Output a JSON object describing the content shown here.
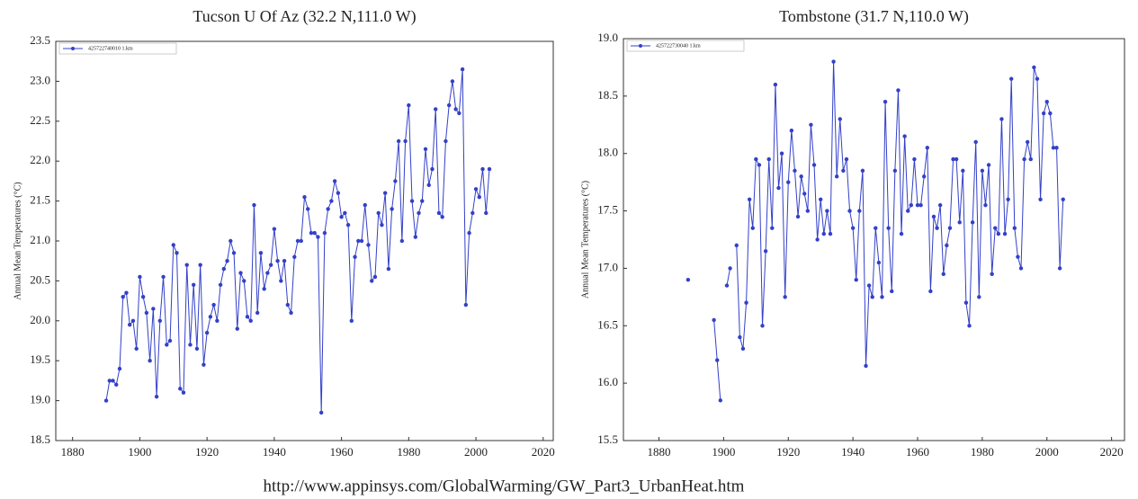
{
  "chart_data": [
    {
      "type": "line",
      "title": "Tucson U Of Az (32.2 N,111.0 W)",
      "y_label": "Annual Mean Temperatures (°C)",
      "x": [
        1890,
        1891,
        1892,
        1893,
        1894,
        1895,
        1896,
        1897,
        1898,
        1899,
        1900,
        1901,
        1902,
        1903,
        1904,
        1905,
        1906,
        1907,
        1908,
        1909,
        1910,
        1911,
        1912,
        1913,
        1914,
        1915,
        1916,
        1917,
        1918,
        1919,
        1920,
        1921,
        1922,
        1923,
        1924,
        1925,
        1926,
        1927,
        1928,
        1929,
        1930,
        1931,
        1932,
        1933,
        1934,
        1935,
        1936,
        1937,
        1938,
        1939,
        1940,
        1941,
        1942,
        1943,
        1944,
        1945,
        1946,
        1947,
        1948,
        1949,
        1950,
        1951,
        1952,
        1953,
        1954,
        1955,
        1956,
        1957,
        1958,
        1959,
        1960,
        1961,
        1962,
        1963,
        1964,
        1965,
        1966,
        1967,
        1968,
        1969,
        1970,
        1971,
        1972,
        1973,
        1974,
        1975,
        1976,
        1977,
        1978,
        1979,
        1980,
        1981,
        1982,
        1983,
        1984,
        1985,
        1986,
        1987,
        1988,
        1989,
        1990,
        1991,
        1992,
        1993,
        1994,
        1995,
        1996,
        1997,
        1998,
        1999,
        2000,
        2001,
        2002,
        2003,
        2004
      ],
      "series": [
        {
          "name": "425722740010 1.km",
          "color": "#3340c8",
          "values": [
            19.0,
            19.25,
            19.25,
            19.2,
            19.4,
            20.3,
            20.35,
            19.95,
            20.0,
            19.65,
            20.55,
            20.3,
            20.1,
            19.5,
            20.15,
            19.05,
            20.0,
            20.55,
            19.7,
            19.75,
            20.95,
            20.85,
            19.15,
            19.1,
            20.7,
            19.7,
            20.45,
            19.65,
            20.7,
            19.45,
            19.85,
            20.05,
            20.2,
            20.0,
            20.45,
            20.65,
            20.75,
            21.0,
            20.85,
            19.9,
            20.6,
            20.5,
            20.05,
            20.0,
            21.45,
            20.1,
            20.85,
            20.4,
            20.6,
            20.7,
            21.15,
            20.75,
            20.5,
            20.75,
            20.2,
            20.1,
            20.8,
            21.0,
            21.0,
            21.55,
            21.4,
            21.1,
            21.1,
            21.05,
            18.85,
            21.1,
            21.4,
            21.5,
            21.75,
            21.6,
            21.3,
            21.35,
            21.2,
            20.0,
            20.8,
            21.0,
            21.0,
            21.45,
            20.95,
            20.5,
            20.55,
            21.35,
            21.2,
            21.6,
            20.65,
            21.4,
            21.75,
            22.25,
            21.0,
            22.25,
            22.7,
            21.5,
            21.05,
            21.35,
            21.5,
            22.15,
            21.7,
            21.9,
            22.65,
            21.35,
            21.3,
            22.25,
            22.7,
            23.0,
            22.65,
            22.6,
            23.15,
            20.2,
            21.1,
            21.35,
            21.65,
            21.55,
            21.9,
            21.35,
            21.9
          ]
        }
      ],
      "xlim": [
        1875,
        2023
      ],
      "xticks": [
        1880,
        1900,
        1920,
        1940,
        1960,
        1980,
        2000,
        2020
      ],
      "ylim": [
        18.5,
        23.5
      ],
      "yticks": [
        18.5,
        {
          "value": 19,
          "label": "19.0"
        },
        19.5,
        {
          "value": 20,
          "label": "20.0"
        },
        20.5,
        {
          "value": 21,
          "label": "21.0"
        },
        21.5,
        {
          "value": 22,
          "label": "22.0"
        },
        22.5,
        {
          "value": 23,
          "label": "23.0"
        },
        23.5
      ],
      "legend": "upper left"
    },
    {
      "type": "line",
      "title": "Tombstone (31.7 N,110.0 W)",
      "y_label": "Annual Mean Temperatures (°C)",
      "x": [
        1889,
        1890,
        1891,
        1892,
        1893,
        1894,
        1895,
        1896,
        1897,
        1898,
        1899,
        1900,
        1901,
        1902,
        1903,
        1904,
        1905,
        1906,
        1907,
        1908,
        1909,
        1910,
        1911,
        1912,
        1913,
        1914,
        1915,
        1916,
        1917,
        1918,
        1919,
        1920,
        1921,
        1922,
        1923,
        1924,
        1925,
        1926,
        1927,
        1928,
        1929,
        1930,
        1931,
        1932,
        1933,
        1934,
        1935,
        1936,
        1937,
        1938,
        1939,
        1940,
        1941,
        1942,
        1943,
        1944,
        1945,
        1946,
        1947,
        1948,
        1949,
        1950,
        1951,
        1952,
        1953,
        1954,
        1955,
        1956,
        1957,
        1958,
        1959,
        1960,
        1961,
        1962,
        1963,
        1964,
        1965,
        1966,
        1967,
        1968,
        1969,
        1970,
        1971,
        1972,
        1973,
        1974,
        1975,
        1976,
        1977,
        1978,
        1979,
        1980,
        1981,
        1982,
        1983,
        1984,
        1985,
        1986,
        1987,
        1988,
        1989,
        1990,
        1991,
        1992,
        1993,
        1994,
        1995,
        1996,
        1997,
        1998,
        1999,
        2000,
        2001,
        2002,
        2003,
        2004,
        2005
      ],
      "series": [
        {
          "name": "425722730040 1.km",
          "color": "#3340c8",
          "values": [
            16.9,
            null,
            null,
            null,
            null,
            null,
            null,
            null,
            16.55,
            16.2,
            15.85,
            null,
            16.85,
            17.0,
            null,
            17.2,
            16.4,
            16.3,
            16.7,
            17.6,
            17.35,
            17.95,
            17.9,
            16.5,
            17.15,
            17.95,
            17.35,
            18.6,
            17.7,
            18.0,
            16.75,
            17.75,
            18.2,
            17.85,
            17.45,
            17.8,
            17.65,
            17.5,
            18.25,
            17.9,
            17.25,
            17.6,
            17.3,
            17.5,
            17.3,
            18.8,
            17.8,
            18.3,
            17.85,
            17.95,
            17.5,
            17.35,
            16.9,
            17.5,
            17.85,
            16.15,
            16.85,
            16.75,
            17.35,
            17.05,
            16.75,
            18.45,
            17.35,
            16.8,
            17.85,
            18.55,
            17.3,
            18.15,
            17.5,
            17.55,
            17.95,
            17.55,
            17.55,
            17.8,
            18.05,
            16.8,
            17.45,
            17.35,
            17.55,
            16.95,
            17.2,
            17.35,
            17.95,
            17.95,
            17.4,
            17.85,
            16.7,
            16.5,
            17.4,
            18.1,
            16.75,
            17.85,
            17.55,
            17.9,
            16.95,
            17.35,
            17.3,
            18.3,
            17.3,
            17.6,
            18.65,
            17.35,
            17.1,
            17.0,
            17.95,
            18.1,
            17.95,
            18.75,
            18.65,
            17.6,
            18.35,
            18.45,
            18.35,
            18.05,
            18.05,
            17.0,
            17.6
          ]
        }
      ],
      "xlim": [
        1869,
        2024
      ],
      "xticks": [
        1880,
        1900,
        1920,
        1940,
        1960,
        1980,
        2000,
        2020
      ],
      "ylim": [
        15.5,
        19.0
      ],
      "yticks": [
        15.5,
        {
          "value": 16,
          "label": "16.0"
        },
        16.5,
        {
          "value": 17,
          "label": "17.0"
        },
        17.5,
        {
          "value": 18,
          "label": "18.0"
        },
        18.5,
        {
          "value": 19,
          "label": "19.0"
        }
      ],
      "legend": "upper left"
    }
  ],
  "caption": "http://www.appinsys.com/GlobalWarming/GW_Part3_UrbanHeat.htm"
}
